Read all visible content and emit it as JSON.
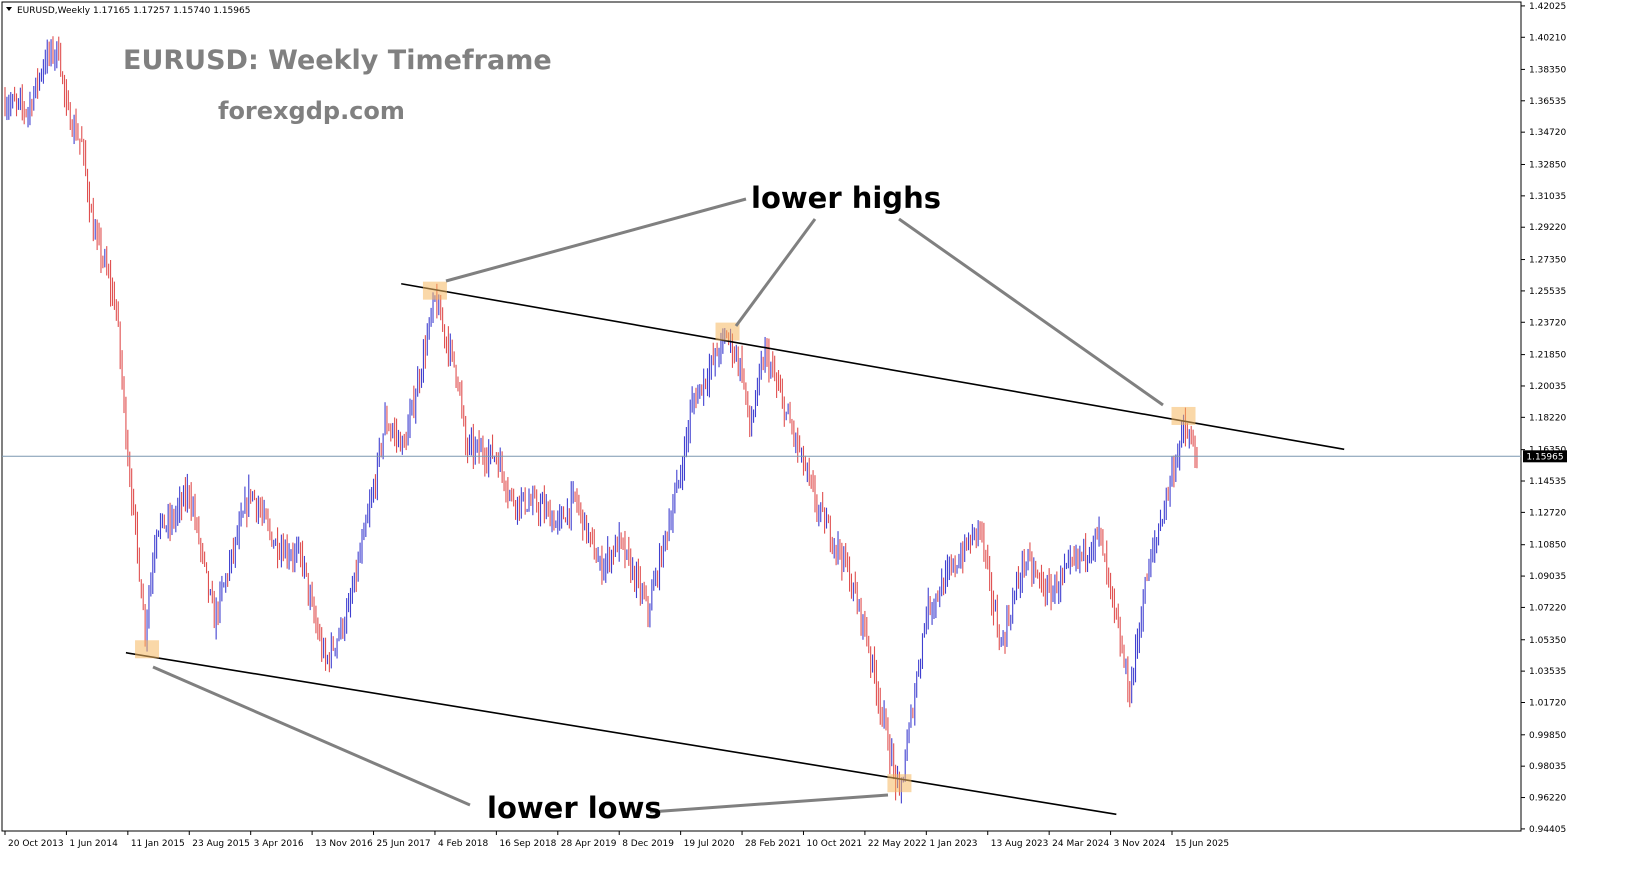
{
  "header": {
    "symbol": "EURUSD,Weekly",
    "ohlc": "1.17165 1.17257 1.15740 1.15965"
  },
  "chart_data": {
    "type": "candlestick",
    "title": "EURUSD: Weekly Timeframe",
    "subtitle": "forexgdp.com",
    "current_price": 1.15965,
    "current_price_label": "1.15965",
    "ylim": [
      0.944,
      1.4202
    ],
    "y_ticks": [
      "1.42025",
      "1.40210",
      "1.38350",
      "1.36535",
      "1.34720",
      "1.32850",
      "1.31035",
      "1.29220",
      "1.27350",
      "1.25535",
      "1.23720",
      "1.21850",
      "1.20035",
      "1.18220",
      "1.16350",
      "1.14535",
      "1.12720",
      "1.10850",
      "1.09035",
      "1.07220",
      "1.05350",
      "1.03535",
      "1.01720",
      "0.99850",
      "0.98035",
      "0.96220",
      "0.94405"
    ],
    "x_ticks": [
      "20 Oct 2013",
      "1 Jun 2014",
      "11 Jan 2015",
      "23 Aug 2015",
      "3 Apr 2016",
      "13 Nov 2016",
      "25 Jun 2017",
      "4 Feb 2018",
      "16 Sep 2018",
      "28 Apr 2019",
      "8 Dec 2019",
      "19 Jul 2020",
      "28 Feb 2021",
      "10 Oct 2021",
      "22 May 2022",
      "1 Jan 2023",
      "13 Aug 2023",
      "24 Mar 2024",
      "3 Nov 2024",
      "15 Jun 2025"
    ],
    "bull_color": "#4040d0",
    "bear_color": "#e05050",
    "price_path": [
      [
        "20 Oct 2013",
        1.365
      ],
      [
        "12 Jan 2014",
        1.36
      ],
      [
        "16 Mar 2014",
        1.39
      ],
      [
        "4 May 2014",
        1.395
      ],
      [
        "1 Jun 2014",
        1.36
      ],
      [
        "27 Jul 2014",
        1.34
      ],
      [
        "7 Sep 2014",
        1.29
      ],
      [
        "19 Oct 2014",
        1.27
      ],
      [
        "30 Nov 2014",
        1.245
      ],
      [
        "11 Jan 2015",
        1.16
      ],
      [
        "15 Mar 2015",
        1.06
      ],
      [
        "26 Apr 2015",
        1.12
      ],
      [
        "14 Jun 2015",
        1.12
      ],
      [
        "23 Aug 2015",
        1.14
      ],
      [
        "22 Nov 2015",
        1.065
      ],
      [
        "3 Apr 2016",
        1.14
      ],
      [
        "26 Jun 2016",
        1.11
      ],
      [
        "9 Oct 2016",
        1.1
      ],
      [
        "13 Nov 2016",
        1.07
      ],
      [
        "1 Jan 2017",
        1.04
      ],
      [
        "26 Mar 2017",
        1.07
      ],
      [
        "25 Jun 2017",
        1.14
      ],
      [
        "6 Aug 2017",
        1.18
      ],
      [
        "15 Oct 2017",
        1.165
      ],
      [
        "4 Feb 2018",
        1.25
      ],
      [
        "29 Apr 2018",
        1.205
      ],
      [
        "27 May 2018",
        1.165
      ],
      [
        "16 Sep 2018",
        1.16
      ],
      [
        "11 Nov 2018",
        1.135
      ],
      [
        "3 Mar 2019",
        1.13
      ],
      [
        "28 Apr 2019",
        1.12
      ],
      [
        "30 Jun 2019",
        1.135
      ],
      [
        "29 Sep 2019",
        1.095
      ],
      [
        "8 Dec 2019",
        1.11
      ],
      [
        "16 Feb 2020",
        1.085
      ],
      [
        "22 Mar 2020",
        1.07
      ],
      [
        "19 Jul 2020",
        1.15
      ],
      [
        "30 Aug 2020",
        1.19
      ],
      [
        "3 Jan 2021",
        1.23
      ],
      [
        "28 Mar 2021",
        1.175
      ],
      [
        "23 May 2021",
        1.22
      ],
      [
        "28 Feb 2021",
        1.21
      ],
      [
        "10 Oct 2021",
        1.155
      ],
      [
        "28 Nov 2021",
        1.13
      ],
      [
        "6 Mar 2022",
        1.1
      ],
      [
        "22 May 2022",
        1.06
      ],
      [
        "25 Sep 2022",
        0.962
      ],
      [
        "1 Jan 2023",
        1.07
      ],
      [
        "16 Jul 2023",
        1.12
      ],
      [
        "13 Aug 2023",
        1.09
      ],
      [
        "1 Oct 2023",
        1.05
      ],
      [
        "24 Dec 2023",
        1.1
      ],
      [
        "24 Mar 2024",
        1.08
      ],
      [
        "22 Sep 2024",
        1.115
      ],
      [
        "3 Nov 2024",
        1.08
      ],
      [
        "12 Jan 2025",
        1.022
      ],
      [
        "9 Mar 2025",
        1.085
      ],
      [
        "15 Jun 2025",
        1.15
      ],
      [
        "27 Jul 2025",
        1.175
      ],
      [
        "14 Sep 2025",
        1.16
      ]
    ],
    "trendlines": {
      "upper": {
        "start": [
          "4 Oct 2017",
          1.2595
        ],
        "end": [
          "5 Mar 2027",
          1.1637
        ]
      },
      "lower": {
        "start": [
          "4 Jan 2015",
          1.046
        ],
        "end": [
          "24 Nov 2024",
          0.9525
        ]
      }
    },
    "markers": [
      {
        "name": "high-2018",
        "date": "4 Feb 2018",
        "price": 1.2555
      },
      {
        "name": "high-2021",
        "date": "6 Jan 2021",
        "price": 1.2318
      },
      {
        "name": "high-2025",
        "date": "27 Jul 2025",
        "price": 1.183
      },
      {
        "name": "low-2015",
        "date": "22 Mar 2015",
        "price": 1.048
      },
      {
        "name": "low-2022",
        "date": "25 Sep 2022",
        "price": 0.9705
      }
    ],
    "annotations": {
      "lower_highs": "lower highs",
      "lower_lows": "lower lows"
    }
  }
}
